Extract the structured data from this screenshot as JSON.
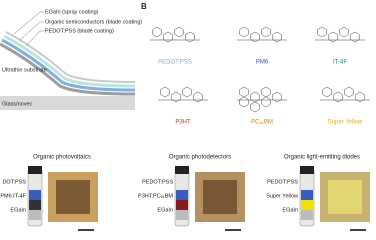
{
  "panelA": {
    "layers": [
      "EGaIn (spray coating)",
      "Organic semiconductors (blade coating)",
      "PEDOT:PSS (blade coating)",
      "Ultrathin substrate",
      "Glass/novec"
    ]
  },
  "panelB": {
    "label": "B",
    "molecules": [
      {
        "name": "PEDOT:PSS",
        "color": "#7fb0e0"
      },
      {
        "name": "PM6",
        "color": "#2f5fb0"
      },
      {
        "name": "IT-4F",
        "color": "#1c7f8c"
      },
      {
        "name": "P3HT",
        "color": "#c0392b"
      },
      {
        "name": "PC₆₁BM",
        "color": "#e07b00"
      },
      {
        "name": "Super Yellow",
        "color": "#e0b400"
      }
    ]
  },
  "panelC": {
    "devices": [
      {
        "title": "Organic photovoltaics",
        "labels": [
          "DOT:PSS",
          "PM6:IT-4F",
          "EGaIn"
        ]
      },
      {
        "title": "Organic photodetectors",
        "labels": [
          "PEDOT:PSS",
          "P3HT:PC₆₁BM",
          "EGaIn"
        ]
      },
      {
        "title": "Organic light-emitting diodes",
        "labels": [
          "PEDOT:PSS",
          "Super Yellow",
          "EGaIn"
        ]
      }
    ]
  }
}
